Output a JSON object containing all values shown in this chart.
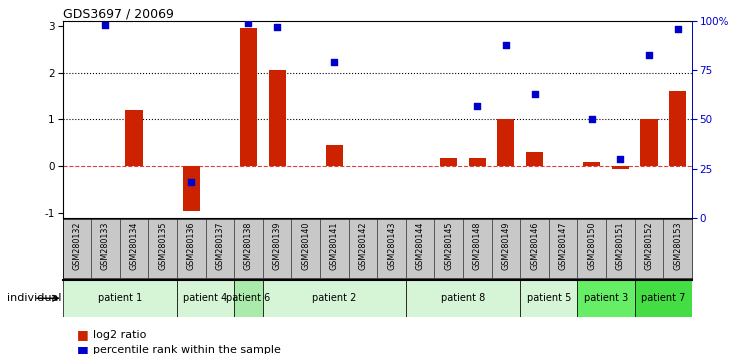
{
  "title": "GDS3697 / 20069",
  "samples": [
    "GSM280132",
    "GSM280133",
    "GSM280134",
    "GSM280135",
    "GSM280136",
    "GSM280137",
    "GSM280138",
    "GSM280139",
    "GSM280140",
    "GSM280141",
    "GSM280142",
    "GSM280143",
    "GSM280144",
    "GSM280145",
    "GSM280148",
    "GSM280149",
    "GSM280146",
    "GSM280147",
    "GSM280150",
    "GSM280151",
    "GSM280152",
    "GSM280153"
  ],
  "log2_ratio": [
    0.0,
    0.0,
    1.2,
    0.0,
    -0.95,
    0.0,
    2.95,
    2.05,
    0.0,
    0.45,
    0.0,
    0.0,
    0.0,
    0.18,
    0.18,
    1.0,
    0.3,
    0.0,
    0.1,
    -0.05,
    1.0,
    1.6
  ],
  "percentile_rank": [
    null,
    98,
    null,
    null,
    18,
    null,
    99,
    97,
    null,
    79,
    null,
    null,
    null,
    null,
    57,
    88,
    63,
    null,
    50,
    30,
    83,
    96
  ],
  "patients": [
    {
      "label": "patient 1",
      "start": 0,
      "end": 4,
      "color": "#d6f5d6"
    },
    {
      "label": "patient 4",
      "start": 4,
      "end": 6,
      "color": "#d6f5d6"
    },
    {
      "label": "patient 6",
      "start": 6,
      "end": 7,
      "color": "#aaeaaa"
    },
    {
      "label": "patient 2",
      "start": 7,
      "end": 12,
      "color": "#d6f5d6"
    },
    {
      "label": "patient 8",
      "start": 12,
      "end": 16,
      "color": "#d6f5d6"
    },
    {
      "label": "patient 5",
      "start": 16,
      "end": 18,
      "color": "#d6f5d6"
    },
    {
      "label": "patient 3",
      "start": 18,
      "end": 20,
      "color": "#66ee66"
    },
    {
      "label": "patient 7",
      "start": 20,
      "end": 22,
      "color": "#44dd44"
    }
  ],
  "bar_color": "#cc2200",
  "dot_color": "#0000cc",
  "ylim_left": [
    -1.1,
    3.1
  ],
  "ylim_right": [
    0,
    100
  ],
  "background_color": "#ffffff",
  "legend_log2": "log2 ratio",
  "legend_pct": "percentile rank within the sample",
  "label_bg": "#c8c8c8"
}
